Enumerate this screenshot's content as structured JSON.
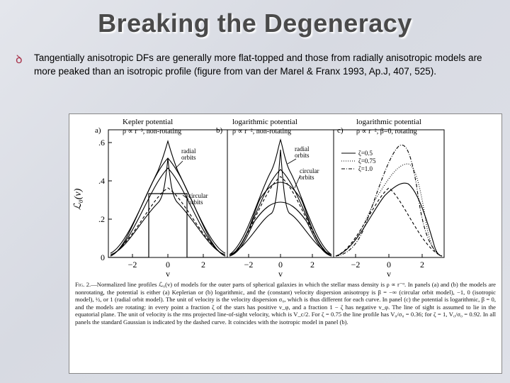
{
  "slide": {
    "title": "Breaking the Degeneracy",
    "bullet_text": "Tangentially anisotropic DFs are generally more flat-topped and those from radially anisotropic models are more peaked than an isotropic profile (figure from van der Marel & Franx 1993, Ap.J, 407, 525)."
  },
  "figure": {
    "panels": [
      {
        "letter": "a)",
        "title_line1": "Kepler potential",
        "title_line2": "ρ ∝ r⁻³, non-rotating",
        "annotations": [
          "radial",
          "orbits",
          "circular",
          "orbits"
        ]
      },
      {
        "letter": "b)",
        "title_line1": "logarithmic potential",
        "title_line2": "ρ ∝ r⁻², non-rotating",
        "annotations": [
          "radial",
          "orbits",
          "circular",
          "orbits"
        ]
      },
      {
        "letter": "c)",
        "title_line1": "logarithmic potential",
        "title_line2": "ρ ∝ r⁻², β=0, rotating",
        "legend": [
          "ζ=0.5",
          "ζ=0.75",
          "ζ=1.0"
        ]
      }
    ],
    "ylabel": "ℒ₀(v)",
    "xlabel": "v",
    "yticks": [
      ".6",
      ".4",
      ".2",
      "0"
    ],
    "xticks": [
      "−2",
      "0",
      "2"
    ],
    "caption_lead": "Fig. 2.",
    "caption_text": "—Normalized line profiles ℒ₀(v) of models for the outer parts of spherical galaxies in which the stellar mass density is ρ ∝ r⁻ᵅ. In panels (a) and (b) the models are nonrotating, the potential is either (a) Keplerian or (b) logarithmic, and the (constant) velocity dispersion anisotropy is β = −∞ (circular orbit model), −1, 0 (isotropic model), ½, or 1 (radial orbit model). The unit of velocity is the velocity dispersion σ₀, which is thus different for each curve. In panel (c) the potential is logarithmic, β = 0, and the models are rotating: in every point a fraction ζ of the stars has positive v_φ, and a fraction 1 − ζ has negative v_φ. The line of sight is assumed to lie in the equatorial plane. The unit of velocity is the rms projected line-of-sight velocity, which is V_c/2. For ζ = 0.75 the line profile has V₀/σ₀ = 0.36; for ζ = 1, V₀/σ₀ = 0.92. In all panels the standard Gaussian is indicated by the dashed curve. It coincides with the isotropic model in panel (b)."
  },
  "colors": {
    "title": "#4a4a4a",
    "bullet_icon": "#a8324a"
  },
  "icons": {
    "bullet": "script-d-bullet-icon"
  }
}
